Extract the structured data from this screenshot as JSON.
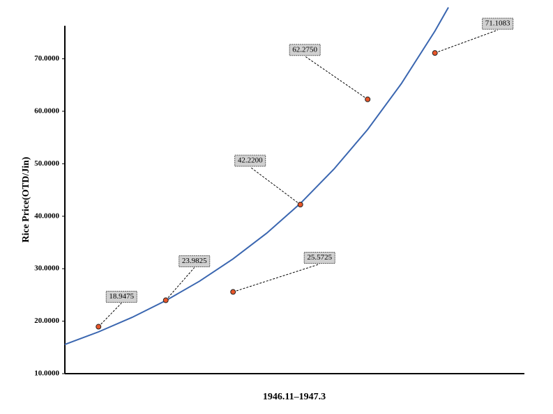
{
  "chart_data": {
    "type": "scatter",
    "x_label": "1946.11–1947.3",
    "y_label": "Rice Price(OTD/Jin)",
    "xlim": [
      0.5,
      7.33
    ],
    "ylim": [
      10,
      76.3
    ],
    "yticks": [
      {
        "value": 10,
        "label": "10.0000"
      },
      {
        "value": 20,
        "label": "20.0000"
      },
      {
        "value": 30,
        "label": "30.0000"
      },
      {
        "value": 40,
        "label": "40.0000"
      },
      {
        "value": 50,
        "label": "50.0000"
      },
      {
        "value": 60,
        "label": "60.0000"
      },
      {
        "value": 70,
        "label": "70.0000"
      }
    ],
    "series": [
      {
        "type": "scatter",
        "color": "#e8562a",
        "x": [
          1,
          2,
          3,
          4,
          5,
          6
        ],
        "values": [
          18.9475,
          23.9825,
          25.5725,
          42.22,
          62.275,
          71.1083
        ],
        "value_labels": [
          "18.9475",
          "23.9825",
          "25.5725",
          "42.2200",
          "62.2750",
          "71.1083"
        ]
      },
      {
        "type": "line",
        "color": "#3a66b0",
        "x": [
          0.5,
          1,
          1.5,
          2,
          2.5,
          3,
          3.5,
          4,
          4.5,
          5,
          5.5,
          6,
          6.2
        ],
        "values": [
          15.56,
          17.96,
          20.73,
          23.92,
          27.61,
          31.86,
          36.77,
          42.44,
          48.98,
          56.53,
          65.24,
          75.29,
          79.8
        ]
      }
    ]
  }
}
